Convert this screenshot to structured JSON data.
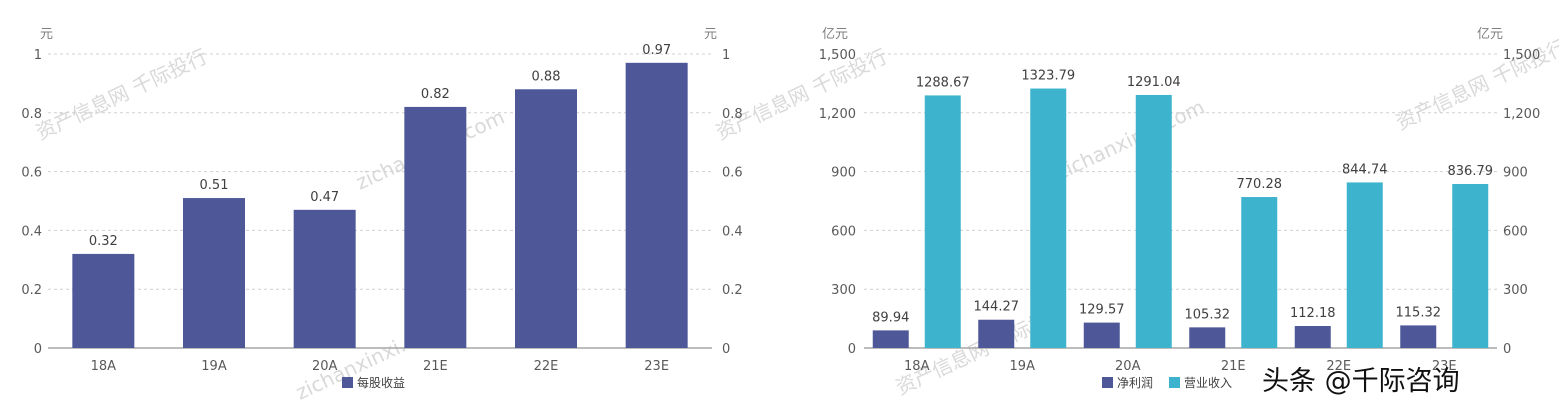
{
  "chart_data": [
    {
      "type": "bar",
      "categories": [
        "18A",
        "19A",
        "20A",
        "21E",
        "22E",
        "23E"
      ],
      "series": [
        {
          "name": "每股收益",
          "values": [
            0.32,
            0.51,
            0.47,
            0.82,
            0.88,
            0.97
          ],
          "color": "#4e5898"
        }
      ],
      "left_unit": "元",
      "right_unit": "元",
      "ylim": [
        0,
        1
      ],
      "yticks": [
        "0",
        "0.2",
        "0.4",
        "0.6",
        "0.8",
        "1"
      ],
      "right_yticks": [
        "0",
        "0.2",
        "0.4",
        "0.6",
        "0.8",
        "1"
      ],
      "data_labels": [
        "0.32",
        "0.51",
        "0.47",
        "0.82",
        "0.88",
        "0.97"
      ],
      "grid": true,
      "legend_position": "bottom"
    },
    {
      "type": "bar",
      "categories": [
        "18A",
        "19A",
        "20A",
        "21E",
        "22E",
        "23E"
      ],
      "series": [
        {
          "name": "净利润",
          "values": [
            89.94,
            144.27,
            129.57,
            105.32,
            112.18,
            115.32
          ],
          "color": "#4e5898",
          "labels": [
            "89.94",
            "144.27",
            "129.57",
            "105.32",
            "112.18",
            "115.32"
          ]
        },
        {
          "name": "营业收入",
          "values": [
            1288.67,
            1323.79,
            1291.04,
            770.28,
            844.74,
            836.79
          ],
          "color": "#3db3cd",
          "labels": [
            "1288.67",
            "1323.79",
            "1291.04",
            "770.28",
            "844.74",
            "836.79"
          ]
        }
      ],
      "left_unit": "亿元",
      "right_unit": "亿元",
      "ylim": [
        0,
        1500
      ],
      "yticks": [
        "0",
        "300",
        "600",
        "900",
        "1,200",
        "1,500"
      ],
      "right_yticks": [
        "0",
        "300",
        "600",
        "900",
        "1,200",
        "1,500"
      ],
      "grid": true,
      "legend_position": "bottom"
    }
  ],
  "overlay": {
    "credit": "头条 @千际咨询",
    "watermarks": [
      "资产信息网 千际投行",
      "zichanxinxi.com"
    ]
  }
}
